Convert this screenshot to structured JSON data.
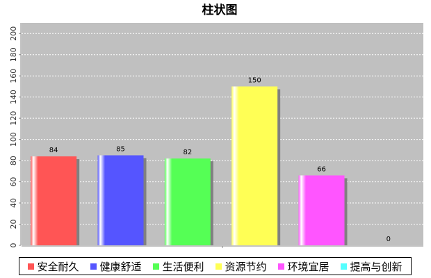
{
  "chart_data": {
    "type": "bar",
    "title": "柱状图",
    "ylim": [
      0,
      210
    ],
    "yticks": [
      0,
      20,
      40,
      60,
      80,
      100,
      120,
      140,
      160,
      180,
      200
    ],
    "grid": true,
    "legend_position": "bottom",
    "series": [
      {
        "name": "安全耐久",
        "value": 84,
        "color": "#ff5555"
      },
      {
        "name": "健康舒适",
        "value": 85,
        "color": "#5555ff"
      },
      {
        "name": "生活便利",
        "value": 82,
        "color": "#55ff55"
      },
      {
        "name": "资源节约",
        "value": 150,
        "color": "#ffff55"
      },
      {
        "name": "环境宜居",
        "value": 66,
        "color": "#ff55ff"
      },
      {
        "name": "提高与创新",
        "value": 0,
        "color": "#55ffff"
      }
    ],
    "plot_background": "#c0c0c0"
  }
}
